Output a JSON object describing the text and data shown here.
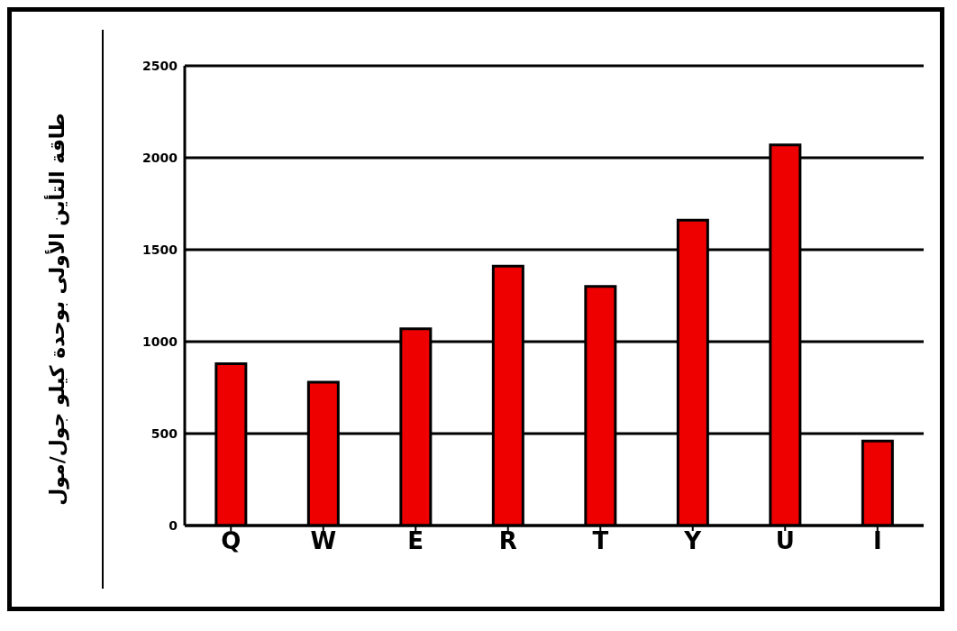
{
  "chart_data": {
    "type": "bar",
    "ylabel": "طاقة التأين الأولى بوحدة كيلو جول/مول",
    "categories": [
      "Q",
      "W",
      "E",
      "R",
      "T",
      "Y",
      "U",
      "I"
    ],
    "values": [
      880,
      780,
      1070,
      1410,
      1300,
      1660,
      2070,
      460
    ],
    "color": "#ee0000",
    "ylim": [
      0,
      2500
    ],
    "yticks": [
      0,
      500,
      1000,
      1500,
      2000,
      2500
    ],
    "grid": "y"
  }
}
